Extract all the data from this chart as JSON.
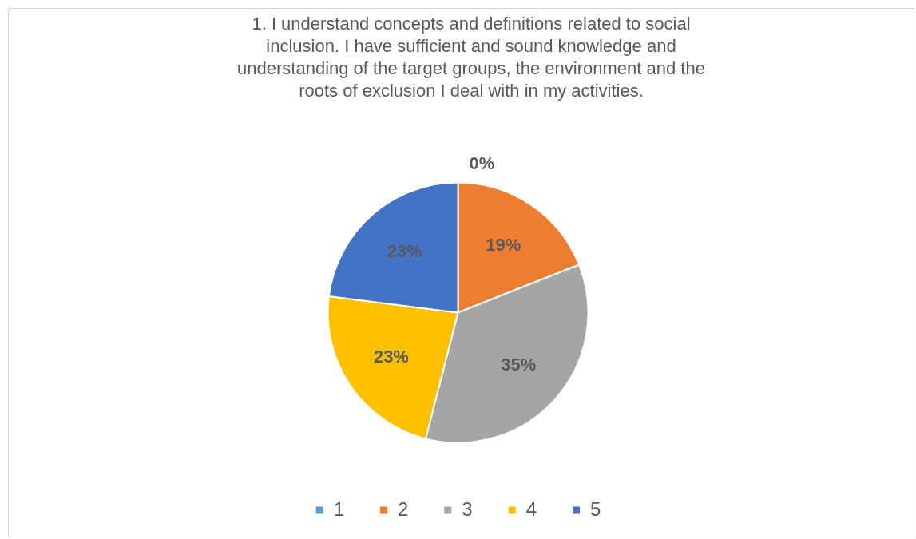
{
  "chart_data": {
    "type": "pie",
    "title": "1. I understand concepts and definitions related to social inclusion. I have sufficient and sound knowledge and understanding of the target groups, the environment and the roots of exclusion I deal with in my activities.",
    "categories": [
      "1",
      "2",
      "3",
      "4",
      "5"
    ],
    "values": [
      0,
      19,
      35,
      23,
      23
    ],
    "colors": [
      "#5b9bd5",
      "#ed7d31",
      "#a5a5a5",
      "#ffc000",
      "#4472c4"
    ],
    "value_labels": [
      "0%",
      "19%",
      "35%",
      "23%",
      "23%"
    ],
    "legend": "bottom"
  }
}
